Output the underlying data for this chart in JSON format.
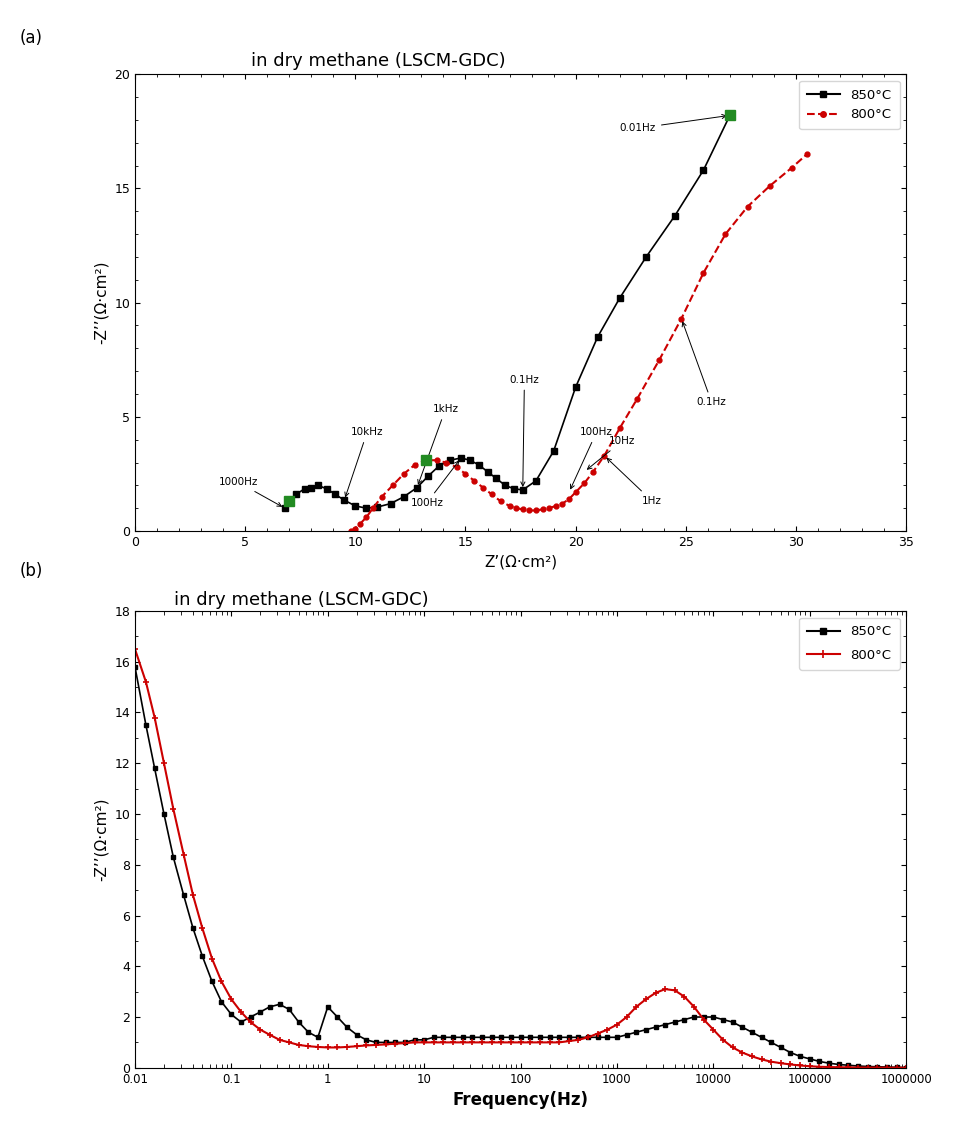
{
  "title": "in dry methane (LSCM-GDC)",
  "nyquist": {
    "xlim": [
      0,
      35
    ],
    "ylim": [
      0,
      20
    ],
    "xlabel": "Z’(Ω·cm²)",
    "ylabel": "-Z’’(Ω·cm²)",
    "850_x": [
      6.8,
      7.0,
      7.3,
      7.7,
      8.0,
      8.3,
      8.7,
      9.1,
      9.5,
      10.0,
      10.5,
      11.0,
      11.6,
      12.2,
      12.8,
      13.3,
      13.8,
      14.3,
      14.8,
      15.2,
      15.6,
      16.0,
      16.4,
      16.8,
      17.2,
      17.6,
      18.2,
      19.0,
      20.0,
      21.0,
      22.0,
      23.2,
      24.5,
      25.8,
      27.0
    ],
    "850_y": [
      1.0,
      1.3,
      1.6,
      1.85,
      1.9,
      2.0,
      1.85,
      1.6,
      1.35,
      1.1,
      1.0,
      1.05,
      1.2,
      1.5,
      1.9,
      2.4,
      2.85,
      3.1,
      3.2,
      3.1,
      2.9,
      2.6,
      2.3,
      2.0,
      1.85,
      1.8,
      2.2,
      3.5,
      6.3,
      8.5,
      10.2,
      12.0,
      13.8,
      15.8,
      18.2
    ],
    "800_x": [
      9.8,
      10.0,
      10.2,
      10.5,
      10.8,
      11.2,
      11.7,
      12.2,
      12.7,
      13.2,
      13.7,
      14.1,
      14.6,
      15.0,
      15.4,
      15.8,
      16.2,
      16.6,
      17.0,
      17.3,
      17.6,
      17.9,
      18.2,
      18.5,
      18.8,
      19.1,
      19.4,
      19.7,
      20.0,
      20.4,
      20.8,
      21.3,
      22.0,
      22.8,
      23.8,
      24.8,
      25.8,
      26.8,
      27.8,
      28.8,
      29.8,
      30.5
    ],
    "800_y": [
      0.0,
      0.1,
      0.3,
      0.6,
      1.0,
      1.5,
      2.0,
      2.5,
      2.9,
      3.1,
      3.1,
      3.0,
      2.8,
      2.5,
      2.2,
      1.9,
      1.6,
      1.3,
      1.1,
      1.0,
      0.95,
      0.9,
      0.9,
      0.95,
      1.0,
      1.1,
      1.2,
      1.4,
      1.7,
      2.1,
      2.6,
      3.3,
      4.5,
      5.8,
      7.5,
      9.3,
      11.3,
      13.0,
      14.2,
      15.1,
      15.9,
      16.5
    ],
    "green_points_850": [
      [
        7.0,
        1.3
      ],
      [
        27.0,
        18.2
      ]
    ],
    "green_points_800": [
      [
        13.2,
        3.1
      ]
    ]
  },
  "bode": {
    "ylim": [
      0,
      18
    ],
    "xlabel": "Frequency(Hz)",
    "ylabel": "-Z’’(Ω·cm²)",
    "850_freq": [
      0.01,
      0.013,
      0.016,
      0.02,
      0.025,
      0.032,
      0.04,
      0.05,
      0.063,
      0.079,
      0.1,
      0.126,
      0.158,
      0.2,
      0.25,
      0.316,
      0.398,
      0.5,
      0.63,
      0.79,
      1.0,
      1.26,
      1.58,
      2.0,
      2.51,
      3.16,
      3.98,
      5.0,
      6.31,
      7.94,
      10.0,
      12.6,
      15.8,
      20.0,
      25.1,
      31.6,
      39.8,
      50.1,
      63.1,
      79.4,
      100,
      126,
      158,
      200,
      251,
      316,
      398,
      501,
      631,
      794,
      1000,
      1259,
      1585,
      1995,
      2512,
      3162,
      3981,
      5012,
      6310,
      7943,
      10000,
      12589,
      15849,
      19953,
      25119,
      31623,
      39811,
      50119,
      63096,
      79433,
      100000,
      125893,
      158489,
      199526,
      251189,
      316228,
      398107,
      501187,
      630957,
      794328,
      1000000
    ],
    "850_zimag": [
      15.8,
      13.5,
      11.8,
      10.0,
      8.3,
      6.8,
      5.5,
      4.4,
      3.4,
      2.6,
      2.1,
      1.8,
      2.0,
      2.2,
      2.4,
      2.5,
      2.3,
      1.8,
      1.4,
      1.2,
      2.4,
      2.0,
      1.6,
      1.3,
      1.1,
      1.0,
      1.0,
      1.0,
      1.0,
      1.1,
      1.1,
      1.2,
      1.2,
      1.2,
      1.2,
      1.2,
      1.2,
      1.2,
      1.2,
      1.2,
      1.2,
      1.2,
      1.2,
      1.2,
      1.2,
      1.2,
      1.2,
      1.2,
      1.2,
      1.2,
      1.2,
      1.3,
      1.4,
      1.5,
      1.6,
      1.7,
      1.8,
      1.9,
      2.0,
      2.0,
      2.0,
      1.9,
      1.8,
      1.6,
      1.4,
      1.2,
      1.0,
      0.8,
      0.6,
      0.45,
      0.35,
      0.25,
      0.18,
      0.13,
      0.1,
      0.07,
      0.05,
      0.04,
      0.03,
      0.02,
      0.01
    ],
    "800_freq": [
      0.01,
      0.013,
      0.016,
      0.02,
      0.025,
      0.032,
      0.04,
      0.05,
      0.063,
      0.079,
      0.1,
      0.126,
      0.158,
      0.2,
      0.25,
      0.316,
      0.398,
      0.5,
      0.63,
      0.79,
      1.0,
      1.26,
      1.58,
      2.0,
      2.51,
      3.16,
      3.98,
      5.0,
      6.31,
      7.94,
      10.0,
      12.6,
      15.8,
      20.0,
      25.1,
      31.6,
      39.8,
      50.1,
      63.1,
      79.4,
      100,
      126,
      158,
      200,
      251,
      316,
      398,
      501,
      631,
      794,
      1000,
      1259,
      1585,
      1995,
      2512,
      3162,
      3981,
      5012,
      6310,
      7943,
      10000,
      12589,
      15849,
      19953,
      25119,
      31623,
      39811,
      50119,
      63096,
      79433,
      100000,
      125893,
      158489,
      199526,
      251189,
      316228,
      398107,
      501187,
      630957,
      794328,
      1000000
    ],
    "800_zimag": [
      16.5,
      15.2,
      13.8,
      12.0,
      10.2,
      8.4,
      6.8,
      5.5,
      4.3,
      3.4,
      2.7,
      2.2,
      1.8,
      1.5,
      1.3,
      1.1,
      1.0,
      0.9,
      0.85,
      0.82,
      0.8,
      0.8,
      0.82,
      0.85,
      0.88,
      0.9,
      0.92,
      0.95,
      0.97,
      1.0,
      1.0,
      1.0,
      1.0,
      1.0,
      1.0,
      1.0,
      1.0,
      1.0,
      1.0,
      1.0,
      1.0,
      1.0,
      1.0,
      1.0,
      1.0,
      1.05,
      1.1,
      1.2,
      1.35,
      1.5,
      1.7,
      2.0,
      2.4,
      2.7,
      2.95,
      3.1,
      3.05,
      2.8,
      2.4,
      1.9,
      1.5,
      1.1,
      0.8,
      0.6,
      0.45,
      0.33,
      0.24,
      0.18,
      0.13,
      0.09,
      0.06,
      0.04,
      0.03,
      0.02,
      0.015,
      0.01,
      0.008,
      0.006,
      0.004,
      0.003,
      0.002
    ]
  },
  "colors": {
    "850": "#000000",
    "800": "#cc0000",
    "green": "#228B22"
  }
}
